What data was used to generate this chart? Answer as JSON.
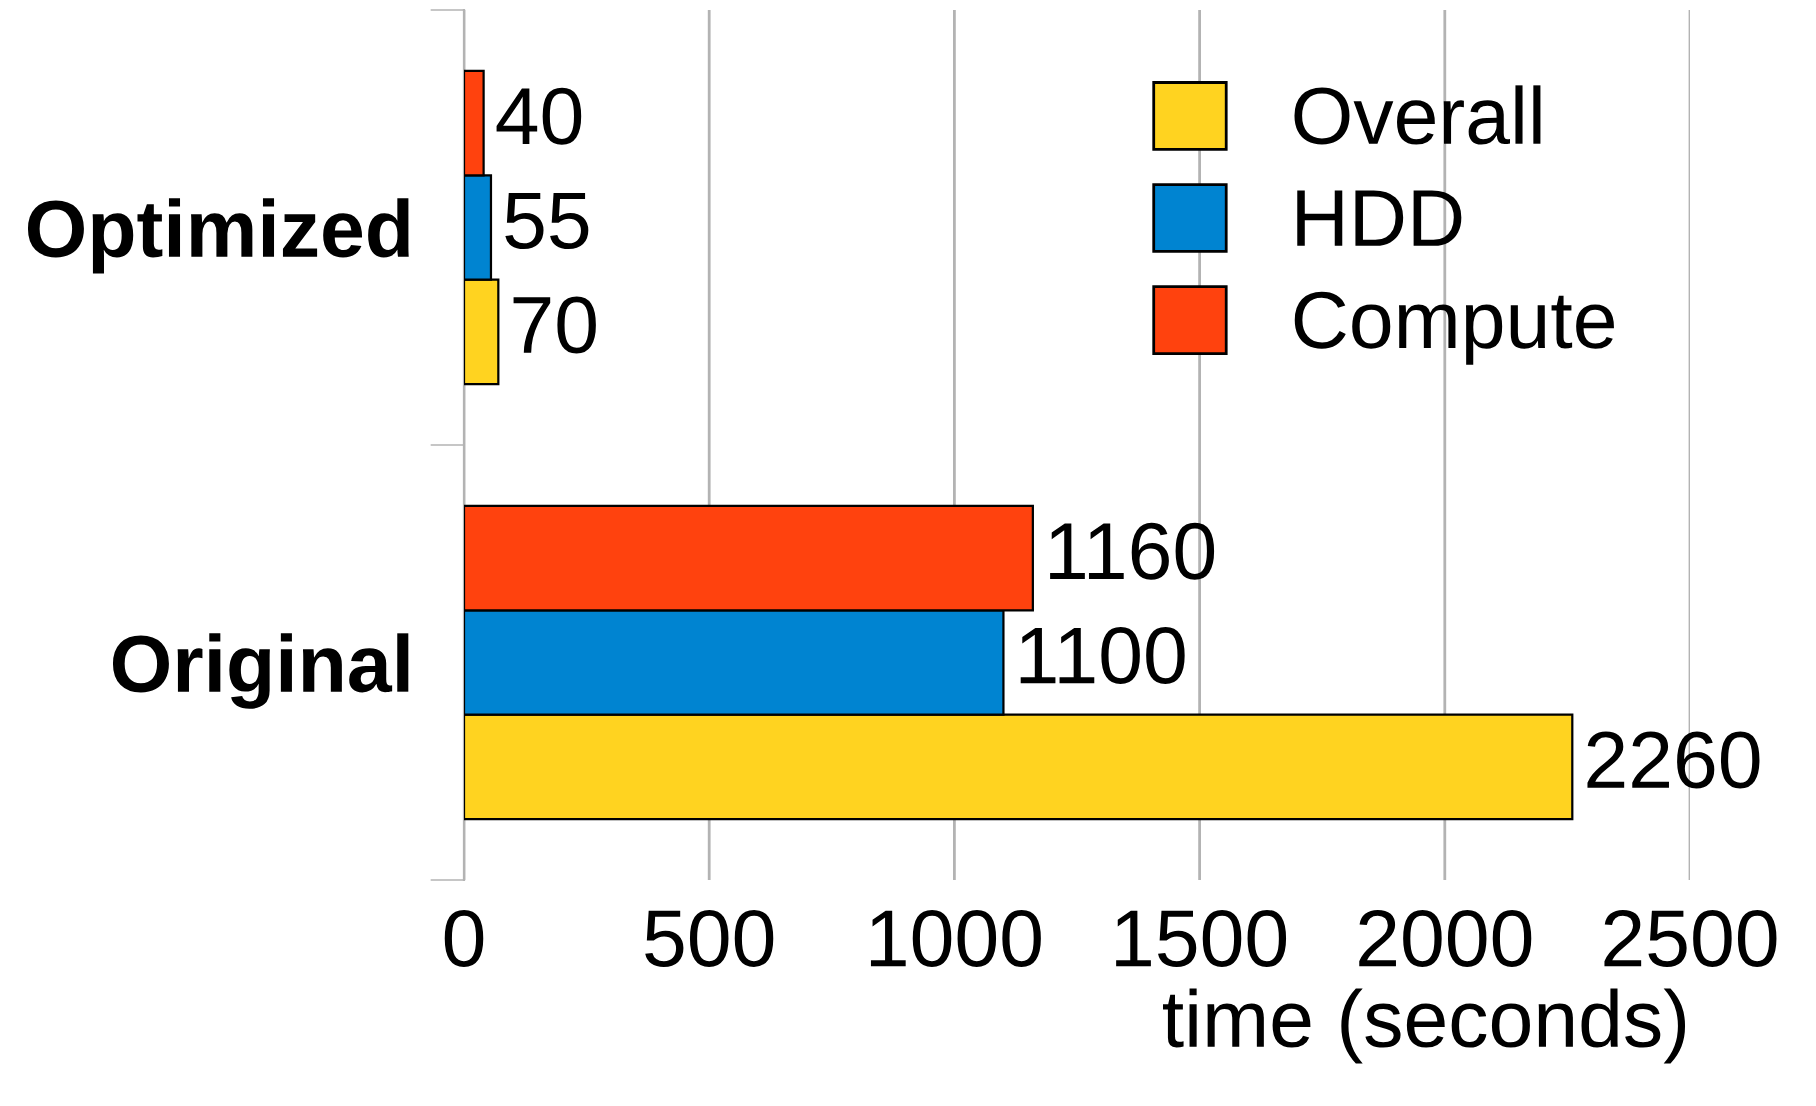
{
  "chart_data": {
    "type": "bar",
    "orientation": "horizontal",
    "categories": [
      "Optimized",
      "Original"
    ],
    "xlabel": "time (seconds)",
    "series": [
      {
        "name": "Overall",
        "color": "#ffd320",
        "values": [
          70,
          2260
        ]
      },
      {
        "name": "HDD",
        "color": "#0084d1",
        "values": [
          55,
          1100
        ]
      },
      {
        "name": "Compute",
        "color": "#ff420e",
        "values": [
          40,
          1160
        ]
      }
    ],
    "xlim": [
      0,
      2500
    ],
    "xticks": [
      0,
      500,
      1000,
      1500,
      2000,
      2500
    ],
    "grid": "x",
    "legend": "top right",
    "data_labels": true
  }
}
